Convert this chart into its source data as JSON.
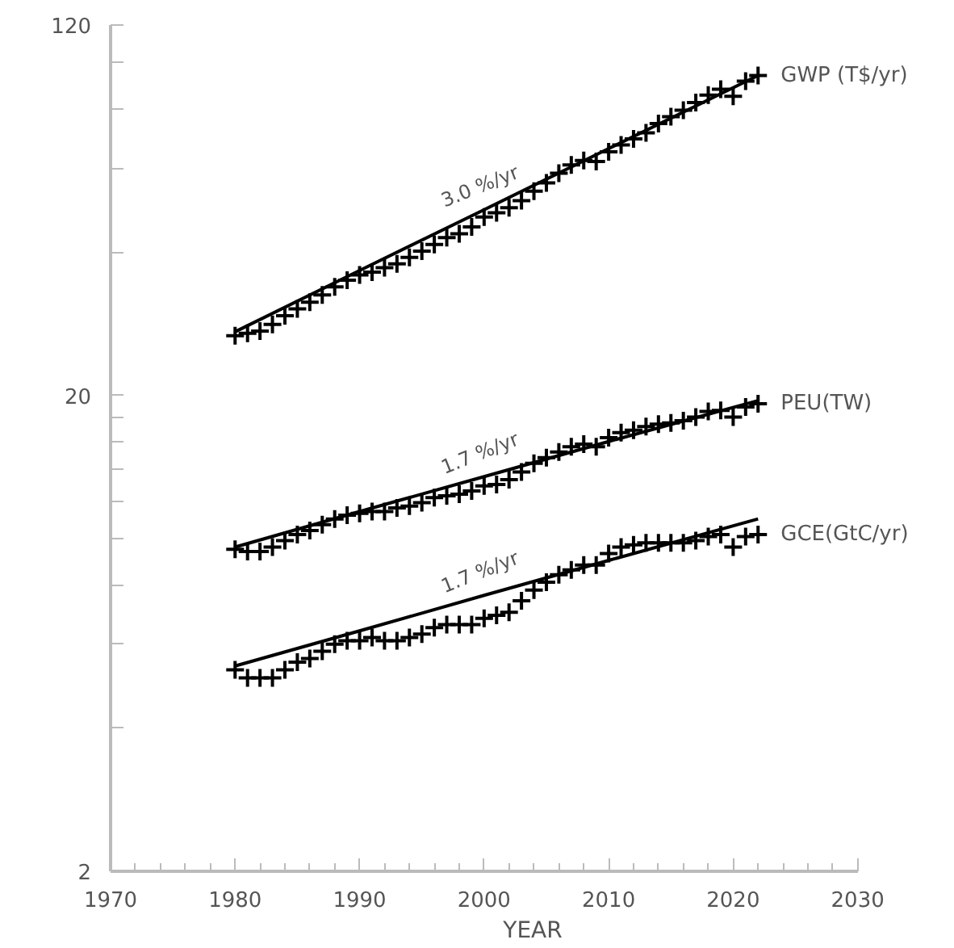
{
  "chart_data": {
    "type": "scatter",
    "xlabel": "YEAR",
    "log": "y",
    "grid": false,
    "xlim": [
      1970,
      2030
    ],
    "xticks": [
      1970,
      1980,
      1990,
      2000,
      2010,
      2020,
      2030
    ],
    "ylim": [
      2,
      120
    ],
    "yticks": [
      2,
      {
        "value": 4,
        "label": null
      },
      {
        "value": 6,
        "label": null
      },
      {
        "value": 8,
        "label": null
      },
      {
        "value": 10,
        "label": null
      },
      {
        "value": 12,
        "label": null
      },
      {
        "value": 14,
        "label": null
      },
      {
        "value": 16,
        "label": null
      },
      {
        "value": 18,
        "label": null
      },
      20,
      {
        "value": 40,
        "label": null
      },
      {
        "value": 60,
        "label": null
      },
      {
        "value": 80,
        "label": null
      },
      {
        "value": 100,
        "label": null
      },
      120
    ],
    "x": [
      1980,
      1981,
      1982,
      1983,
      1984,
      1985,
      1986,
      1987,
      1988,
      1989,
      1990,
      1991,
      1992,
      1993,
      1994,
      1995,
      1996,
      1997,
      1998,
      1999,
      2000,
      2001,
      2002,
      2003,
      2004,
      2005,
      2006,
      2007,
      2008,
      2009,
      2010,
      2011,
      2012,
      2013,
      2014,
      2015,
      2016,
      2017,
      2018,
      2019,
      2020,
      2021,
      2022
    ],
    "series": [
      {
        "name": "GWP (T$/yr)",
        "color": "#000000",
        "marker": "cross",
        "values": [
          26.7,
          27.0,
          27.3,
          28.2,
          29.4,
          30.4,
          31.4,
          32.5,
          33.8,
          34.9,
          35.8,
          36.3,
          37.1,
          37.8,
          39.0,
          40.2,
          41.5,
          42.9,
          43.7,
          45.2,
          47.4,
          48.4,
          49.6,
          51.3,
          53.7,
          55.9,
          58.6,
          61.0,
          62.3,
          62.0,
          65.0,
          67.2,
          69.2,
          71.2,
          74.5,
          77.0,
          79.5,
          82.5,
          85.5,
          88.0,
          85.0,
          91.5,
          94.0
        ]
      },
      {
        "name": "PEU(TW)",
        "color": "#000000",
        "marker": "cross",
        "values": [
          9.5,
          9.4,
          9.4,
          9.6,
          9.9,
          10.2,
          10.4,
          10.7,
          11.0,
          11.2,
          11.3,
          11.4,
          11.4,
          11.6,
          11.7,
          11.9,
          12.2,
          12.3,
          12.4,
          12.6,
          12.9,
          13.0,
          13.3,
          13.8,
          14.4,
          14.8,
          15.2,
          15.6,
          15.8,
          15.6,
          16.3,
          16.7,
          16.9,
          17.2,
          17.4,
          17.5,
          17.7,
          18.0,
          18.5,
          18.6,
          18.0,
          18.9,
          19.2
        ]
      },
      {
        "name": "GCE(GtC/yr)",
        "color": "#000000",
        "marker": "cross",
        "values": [
          5.3,
          5.1,
          5.1,
          5.1,
          5.3,
          5.5,
          5.6,
          5.8,
          6.0,
          6.1,
          6.1,
          6.2,
          6.1,
          6.1,
          6.2,
          6.3,
          6.5,
          6.6,
          6.6,
          6.6,
          6.8,
          6.9,
          7.0,
          7.4,
          7.8,
          8.1,
          8.4,
          8.6,
          8.8,
          8.8,
          9.3,
          9.6,
          9.7,
          9.8,
          9.8,
          9.8,
          9.8,
          9.9,
          10.1,
          10.2,
          9.6,
          10.1,
          10.2
        ]
      },
      {
        "type": "line",
        "line_style": "solid",
        "color": "#000000",
        "x": [
          1980,
          1990,
          2000,
          2010,
          2022
        ],
        "values": [
          27.2,
          36.6,
          49.1,
          66.0,
          94.0
        ]
      },
      {
        "type": "line",
        "line_style": "solid",
        "color": "#000000",
        "x": [
          1980,
          1990,
          2000,
          2010,
          2022
        ],
        "values": [
          9.6,
          11.4,
          13.5,
          16.0,
          19.5
        ]
      },
      {
        "type": "line",
        "line_style": "solid",
        "color": "#000000",
        "x": [
          1980,
          1990,
          2000,
          2010,
          2022
        ],
        "values": [
          5.4,
          6.4,
          7.6,
          9.0,
          11.0
        ]
      }
    ],
    "annotations": [
      "3.0 %/yr",
      "1.7 %/yr",
      "1.7 %/yr"
    ]
  }
}
